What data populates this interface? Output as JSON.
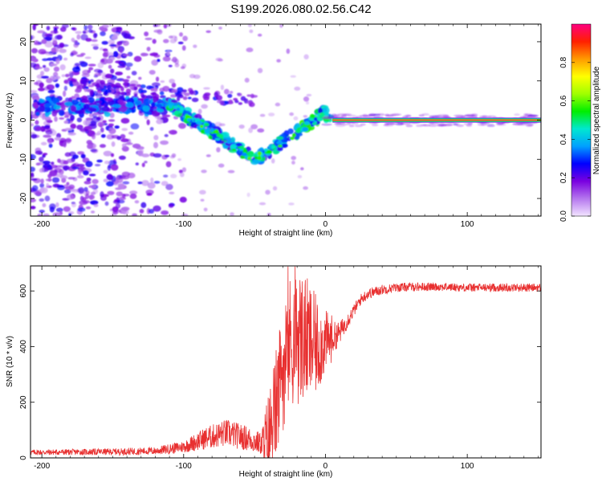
{
  "title": "S199.2026.080.02.56.C42",
  "chart_data": [
    {
      "type": "heatmap",
      "name": "spectrogram",
      "xlabel": "Height of straight line (km)",
      "ylabel": "Frequency (Hz)",
      "xlim": [
        -208,
        152
      ],
      "ylim": [
        -24.5,
        24.5
      ],
      "xticks": [
        -200,
        -100,
        0,
        100
      ],
      "xtick_labels": [
        "-200",
        "-100",
        "0",
        "100"
      ],
      "yticks": [
        -20,
        -10,
        0,
        10,
        20
      ],
      "ytick_labels": [
        "-20",
        "-10",
        "0",
        "10",
        "20"
      ],
      "tone": {
        "x_start": 5,
        "x_end": 152,
        "freq": 0
      },
      "colorbar": {
        "label": "Normalized spectral amplitude",
        "range": [
          0,
          1
        ],
        "ticks": [
          0.0,
          0.2,
          0.4,
          0.6,
          0.8
        ],
        "tick_labels": [
          "0.0",
          "0.2",
          "0.4",
          "0.6",
          "0.8"
        ],
        "colors": [
          "#f2e4ff",
          "#b577ee",
          "#7a00e0",
          "#0000ff",
          "#00a0ff",
          "#00e8d0",
          "#00ee00",
          "#a0ff00",
          "#ffff00",
          "#ff9a00",
          "#ff2000",
          "#ff0080"
        ]
      }
    },
    {
      "type": "line",
      "name": "snr",
      "xlabel": "Height of straight line (km)",
      "ylabel": "SNR (10 * v/v)",
      "xlim": [
        -208,
        152
      ],
      "ylim": [
        0,
        690
      ],
      "xticks": [
        -200,
        -100,
        0,
        100
      ],
      "xtick_labels": [
        "-200",
        "-100",
        "0",
        "100"
      ],
      "yticks": [
        0,
        200,
        400,
        600
      ],
      "ytick_labels": [
        "0",
        "200",
        "400",
        "600"
      ],
      "color": "#e83030",
      "envelope": {
        "x": [
          -208,
          -150,
          -120,
          -100,
          -85,
          -70,
          -55,
          -45,
          -40,
          -35,
          -30,
          -25,
          -20,
          -15,
          -10,
          -5,
          0,
          5,
          10,
          15,
          20,
          25,
          30,
          40,
          50,
          60,
          80,
          100,
          120,
          140,
          152
        ],
        "y": [
          20,
          22,
          25,
          40,
          70,
          90,
          70,
          50,
          80,
          180,
          320,
          420,
          440,
          430,
          410,
          400,
          420,
          430,
          450,
          490,
          530,
          570,
          590,
          605,
          612,
          615,
          615,
          612,
          612,
          612,
          612
        ],
        "noise": [
          10,
          12,
          14,
          22,
          40,
          50,
          45,
          40,
          120,
          150,
          160,
          170,
          180,
          170,
          150,
          120,
          80,
          60,
          40,
          30,
          22,
          20,
          20,
          18,
          16,
          16,
          15,
          15,
          15,
          15,
          15
        ]
      }
    }
  ]
}
